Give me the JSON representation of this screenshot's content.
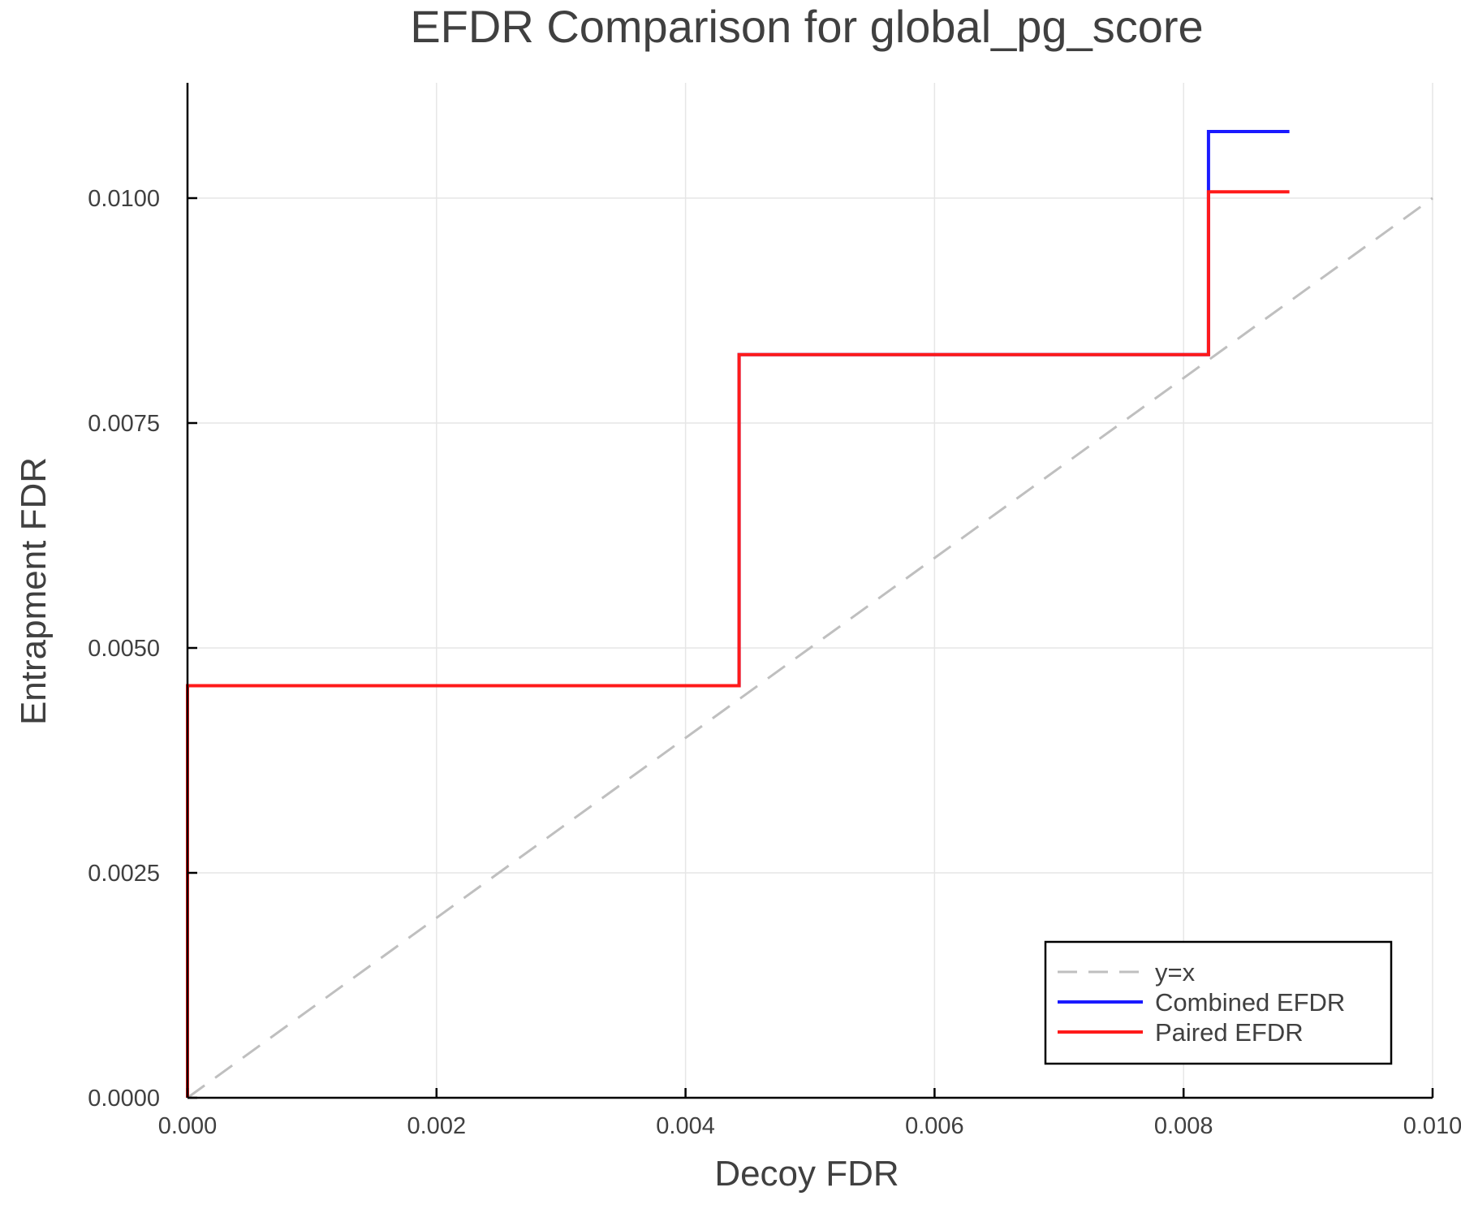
{
  "chart_data": {
    "type": "line",
    "title": "EFDR Comparison for global_pg_score",
    "xlabel": "Decoy FDR",
    "ylabel": "Entrapment FDR",
    "xlim": [
      0.0,
      0.01
    ],
    "ylim": [
      0.0,
      0.0112
    ],
    "xticks": [
      "0.000",
      "0.002",
      "0.004",
      "0.006",
      "0.008",
      "0.010"
    ],
    "xtick_values": [
      0.0,
      0.002,
      0.004,
      0.006,
      0.008,
      0.01
    ],
    "yticks": [
      "0.0000",
      "0.0025",
      "0.0050",
      "0.0075",
      "0.0100"
    ],
    "ytick_values": [
      0.0,
      0.0025,
      0.005,
      0.0075,
      0.01
    ],
    "grid": true,
    "legend_position": "bottom-right",
    "series": [
      {
        "name": "y=x",
        "style": "dashed",
        "color": "#bfbfbf",
        "x": [
          0.0,
          0.01
        ],
        "y": [
          0.0,
          0.01
        ]
      },
      {
        "name": "Combined EFDR",
        "style": "step",
        "color": "#1a1aff",
        "x": [
          0.0,
          0.0,
          0.00443,
          0.00443,
          0.0082,
          0.0082,
          0.00885
        ],
        "y": [
          0.0,
          0.00458,
          0.00458,
          0.00826,
          0.00826,
          0.01074,
          0.01074
        ]
      },
      {
        "name": "Paired EFDR",
        "style": "step",
        "color": "#ff1a1a",
        "x": [
          0.0,
          0.0,
          0.00443,
          0.00443,
          0.0082,
          0.0082,
          0.00885
        ],
        "y": [
          0.0,
          0.00458,
          0.00458,
          0.00826,
          0.00826,
          0.01007,
          0.01007
        ]
      }
    ]
  },
  "legend": {
    "items": [
      {
        "label": "y=x"
      },
      {
        "label": "Combined EFDR"
      },
      {
        "label": "Paired EFDR"
      }
    ]
  }
}
